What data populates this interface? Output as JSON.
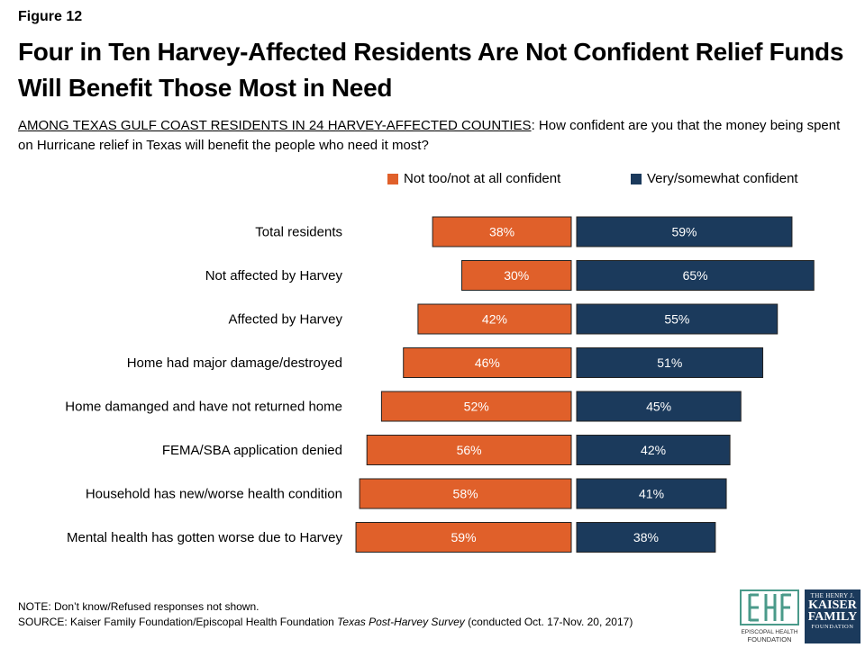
{
  "figure_label": "Figure 12",
  "title": "Four in Ten Harvey-Affected Residents Are Not Confident Relief Funds Will Benefit Those Most in Need",
  "subtitle_prefix": "AMONG TEXAS GULF COAST RESIDENTS IN 24 HARVEY-AFFECTED COUNTIES",
  "subtitle_text": ": How confident are you that the money being spent on Hurricane relief in Texas will benefit the people who need it most?",
  "colors": {
    "orange": "#e0602a",
    "navy": "#1b3a5c"
  },
  "chart_data": {
    "type": "bar",
    "orientation": "horizontal-diverging",
    "categories": [
      "Total residents",
      "Not affected by Harvey",
      "Affected by Harvey",
      "Home had major damage/destroyed",
      "Home damanged and have not returned home",
      "FEMA/SBA application denied",
      "Household has new/worse health condition",
      "Mental health has gotten worse due to Harvey"
    ],
    "series": [
      {
        "name": "Not too/not at all confident",
        "color": "#e0602a",
        "values": [
          38,
          30,
          42,
          46,
          52,
          56,
          58,
          59
        ]
      },
      {
        "name": "Very/somewhat confident",
        "color": "#1b3a5c",
        "values": [
          59,
          65,
          55,
          51,
          45,
          42,
          41,
          38
        ]
      }
    ],
    "value_suffix": "%",
    "legend_position": "top-right",
    "grid": false
  },
  "note_text": "NOTE: Don’t know/Refused responses not shown.",
  "source_prefix": "SOURCE: Kaiser Family Foundation/Episcopal Health Foundation ",
  "source_italic": "Texas Post-Harvey Survey",
  "source_suffix": " (conducted Oct. 17-Nov. 20, 2017)",
  "logos": {
    "ehf_line1": "EPISCOPAL HEALTH",
    "ehf_line2": "FOUNDATION",
    "kff_line1": "THE HENRY J.",
    "kff_line2": "KAISER",
    "kff_line3": "FAMILY",
    "kff_line4": "FOUNDATION"
  }
}
